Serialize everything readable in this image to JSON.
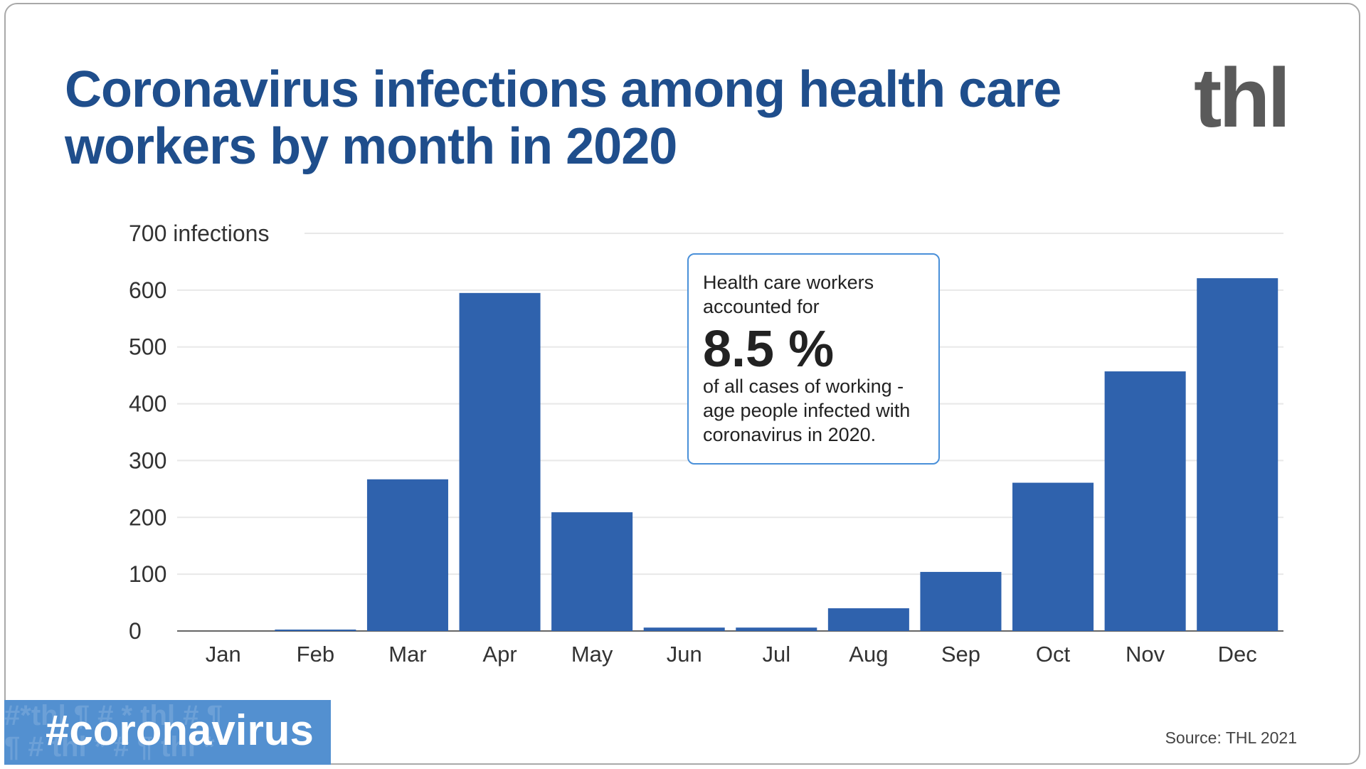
{
  "title": "Coronavirus infections among health care workers by month in 2020",
  "logo": "thl",
  "annotation": {
    "line1": "Health care workers accounted for",
    "value": "8.5 %",
    "line2": "of all cases of working -age people infected with coronavirus in 2020."
  },
  "hashtag": "#coronavirus",
  "source": "Source: THL 2021",
  "colors": {
    "bar": "#2f62ad",
    "title": "#1f4e8c",
    "hashtag_bg": "#5390d0",
    "annotation_border": "#4a90d9"
  },
  "chart_data": {
    "type": "bar",
    "title": "Coronavirus infections among health care workers by month in 2020",
    "xlabel": "",
    "ylabel": "infections",
    "ylim": [
      0,
      700
    ],
    "yticks": [
      0,
      100,
      200,
      300,
      400,
      500,
      600,
      700
    ],
    "ytick_labels": [
      "0",
      "100",
      "200",
      "300",
      "400",
      "500",
      "600",
      "700 infections"
    ],
    "grid": true,
    "categories": [
      "Jan",
      "Feb",
      "Mar",
      "Apr",
      "May",
      "Jun",
      "Jul",
      "Aug",
      "Sep",
      "Oct",
      "Nov",
      "Dec"
    ],
    "values": [
      0,
      1,
      267,
      595,
      209,
      6,
      6,
      40,
      104,
      261,
      457,
      621
    ]
  }
}
